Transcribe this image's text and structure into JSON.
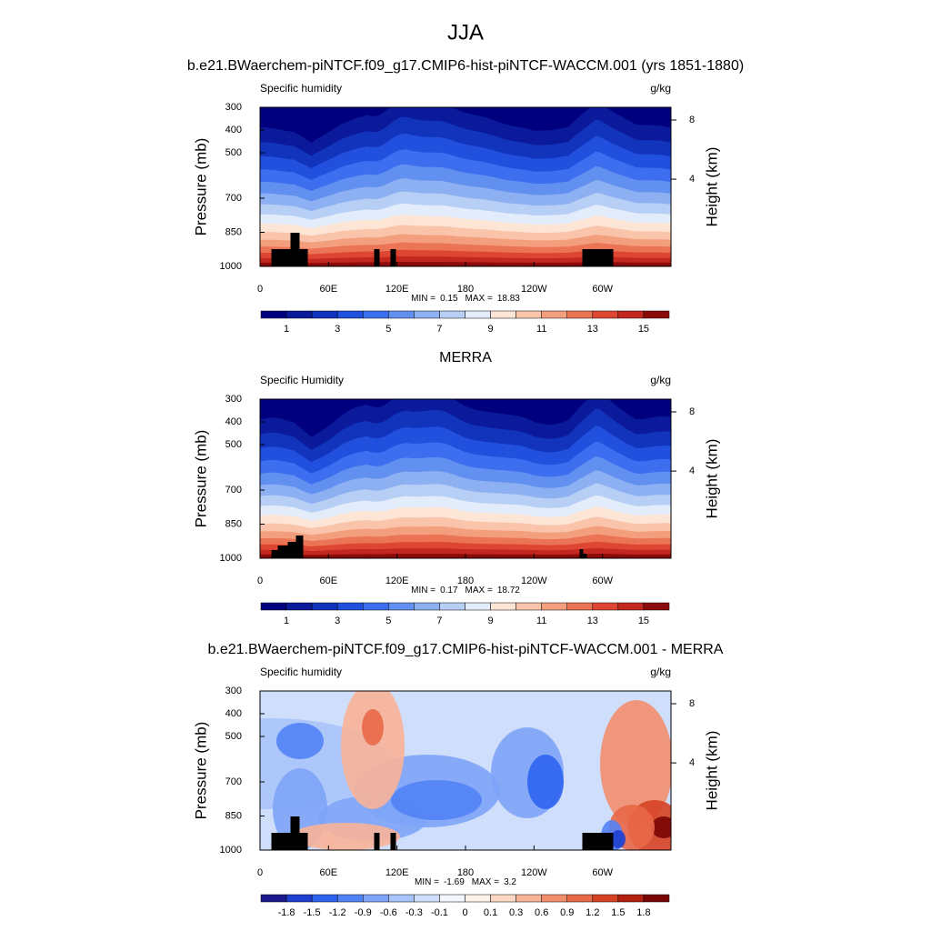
{
  "title": "JJA",
  "chart_data": [
    {
      "type": "contour",
      "title": "b.e21.BWaerchem-piNTCF.f09_g17.CMIP6-hist-piNTCF-WACCM.001 (yrs 1851-1880)",
      "left_label": "Specific humidity",
      "units": "g/kg",
      "ylabel": "Pressure (mb)",
      "y2label": "Height (km)",
      "xlim": [
        0,
        360
      ],
      "xticks": [
        0,
        {
          "value": 60,
          "label": "60E"
        },
        {
          "value": 120,
          "label": "120E"
        },
        180,
        {
          "value": 240,
          "label": "120W"
        },
        {
          "value": 300,
          "label": "60W"
        }
      ],
      "ylim": [
        1000,
        300
      ],
      "yticks": [
        300,
        400,
        500,
        700,
        850,
        1000
      ],
      "y2ticks": [
        4,
        8
      ],
      "min_label": "MIN =",
      "min": 0.15,
      "max_label": "MAX =",
      "max": 18.83,
      "colorbar": {
        "colors": [
          "#00007f",
          "#0a1a9a",
          "#1233bb",
          "#2050dd",
          "#3d6ef0",
          "#6290f0",
          "#8db0f2",
          "#b8cff5",
          "#e2ecfa",
          "#fde5d5",
          "#f9c4aa",
          "#f39f7e",
          "#ea7455",
          "#dd4633",
          "#c2281f",
          "#8b0a0a"
        ],
        "ticks": [
          1,
          3,
          5,
          7,
          9,
          11,
          13,
          15
        ]
      }
    },
    {
      "type": "contour",
      "title": "MERRA",
      "left_label": "Specific Humidity",
      "units": "g/kg",
      "ylabel": "Pressure (mb)",
      "y2label": "Height (km)",
      "xlim": [
        0,
        360
      ],
      "xticks": [
        0,
        {
          "value": 60,
          "label": "60E"
        },
        {
          "value": 120,
          "label": "120E"
        },
        180,
        {
          "value": 240,
          "label": "120W"
        },
        {
          "value": 300,
          "label": "60W"
        }
      ],
      "ylim": [
        1000,
        300
      ],
      "yticks": [
        300,
        400,
        500,
        700,
        850,
        1000
      ],
      "y2ticks": [
        4,
        8
      ],
      "min_label": "MIN =",
      "min": 0.17,
      "max_label": "MAX =",
      "max": 18.72,
      "colorbar": {
        "colors": [
          "#00007f",
          "#0a1a9a",
          "#1233bb",
          "#2050dd",
          "#3d6ef0",
          "#6290f0",
          "#8db0f2",
          "#b8cff5",
          "#e2ecfa",
          "#fde5d5",
          "#f9c4aa",
          "#f39f7e",
          "#ea7455",
          "#dd4633",
          "#c2281f",
          "#8b0a0a"
        ],
        "ticks": [
          1,
          3,
          5,
          7,
          9,
          11,
          13,
          15
        ]
      }
    },
    {
      "type": "contour",
      "title": "b.e21.BWaerchem-piNTCF.f09_g17.CMIP6-hist-piNTCF-WACCM.001 - MERRA",
      "left_label": "Specific humidity",
      "units": "g/kg",
      "ylabel": "Pressure (mb)",
      "y2label": "Height (km)",
      "xlim": [
        0,
        360
      ],
      "xticks": [
        0,
        {
          "value": 60,
          "label": "60E"
        },
        {
          "value": 120,
          "label": "120E"
        },
        180,
        {
          "value": 240,
          "label": "120W"
        },
        {
          "value": 300,
          "label": "60W"
        }
      ],
      "ylim": [
        1000,
        300
      ],
      "yticks": [
        300,
        400,
        500,
        700,
        850,
        1000
      ],
      "y2ticks": [
        4,
        8
      ],
      "min_label": "MIN =",
      "min": -1.69,
      "max_label": "MAX =",
      "max": 3.2,
      "colorbar": {
        "colors": [
          "#1a1a8c",
          "#1f3fd0",
          "#2e63f0",
          "#5283f5",
          "#7ea4f7",
          "#a8c4f9",
          "#cfdffb",
          "#f2f6fd",
          "#fdf2ea",
          "#fbd8c3",
          "#f8b398",
          "#f28e6e",
          "#e86848",
          "#d64224",
          "#b32010",
          "#7a0606"
        ],
        "ticks": [
          -1.8,
          -1.5,
          -1.2,
          -0.9,
          -0.6,
          -0.3,
          -0.1,
          0,
          0.1,
          0.3,
          0.6,
          0.9,
          1.2,
          1.5,
          1.8
        ]
      }
    }
  ]
}
